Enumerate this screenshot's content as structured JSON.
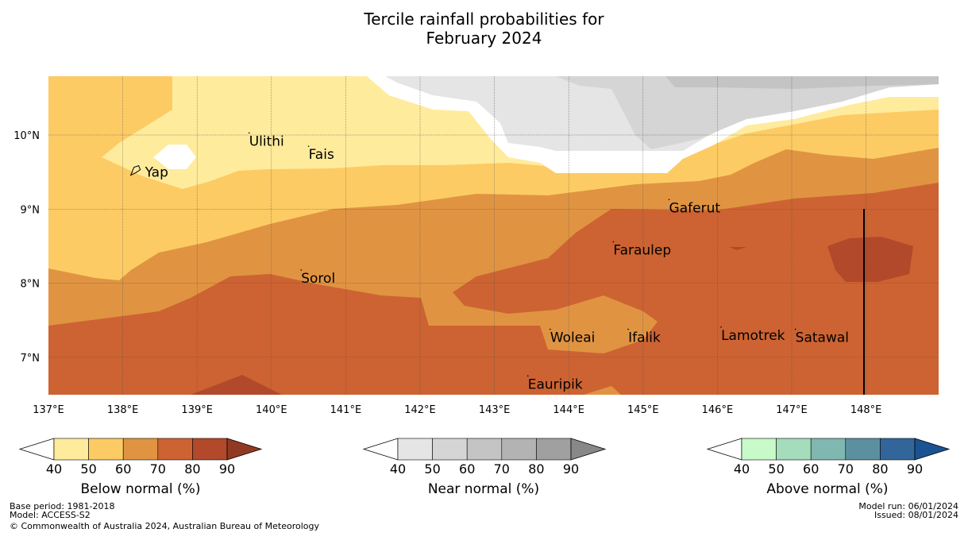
{
  "title": {
    "line1": "Tercile rainfall probabilities for",
    "line2": "February 2024"
  },
  "map": {
    "lon_ticks": [
      "137°E",
      "138°E",
      "139°E",
      "140°E",
      "141°E",
      "142°E",
      "143°E",
      "144°E",
      "145°E",
      "146°E",
      "147°E",
      "148°E"
    ],
    "lat_ticks": [
      "10°N",
      "9°N",
      "8°N",
      "7°N"
    ],
    "places": [
      {
        "name": "Ulithi",
        "lon": 139.7,
        "lat": 9.9
      },
      {
        "name": "Fais",
        "lon": 140.5,
        "lat": 9.72
      },
      {
        "name": "Yap",
        "lon": 138.15,
        "lat": 9.5
      },
      {
        "name": "Gaferut",
        "lon": 145.35,
        "lat": 9.0
      },
      {
        "name": "Faraulep",
        "lon": 144.6,
        "lat": 8.43
      },
      {
        "name": "Sorol",
        "lon": 140.4,
        "lat": 8.05
      },
      {
        "name": "Woleai",
        "lon": 143.75,
        "lat": 7.25
      },
      {
        "name": "Ifalik",
        "lon": 144.8,
        "lat": 7.25
      },
      {
        "name": "Lamotrek",
        "lon": 146.05,
        "lat": 7.28
      },
      {
        "name": "Satawal",
        "lon": 147.05,
        "lat": 7.25
      },
      {
        "name": "Eauripik",
        "lon": 143.45,
        "lat": 6.62
      }
    ]
  },
  "colorbars": [
    {
      "label": "Below normal (%)",
      "ticks": [
        "40",
        "50",
        "60",
        "70",
        "80",
        "90"
      ],
      "colors": [
        "#ffeb9c",
        "#fdcb63",
        "#e09442",
        "#cd6332",
        "#b1492a",
        "#913a23"
      ]
    },
    {
      "label": "Near normal (%)",
      "ticks": [
        "40",
        "50",
        "60",
        "70",
        "80",
        "90"
      ],
      "colors": [
        "#e5e5e5",
        "#d5d5d5",
        "#c4c4c4",
        "#b3b3b3",
        "#a0a0a0",
        "#888888"
      ]
    },
    {
      "label": "Above normal (%)",
      "ticks": [
        "40",
        "50",
        "60",
        "70",
        "80",
        "90"
      ],
      "colors": [
        "#c8f9c8",
        "#a4dcbc",
        "#80b7b0",
        "#5c90a0",
        "#32669b",
        "#1b5292"
      ]
    }
  ],
  "footer": {
    "base_period": "Base period: 1981-2018",
    "model": "Model: ACCESS-S2",
    "copyright": "© Commonwealth of Australia 2024, Australian Bureau of Meteorology",
    "model_run": "Model run: 06/01/2024",
    "issued": "Issued: 08/01/2024"
  }
}
